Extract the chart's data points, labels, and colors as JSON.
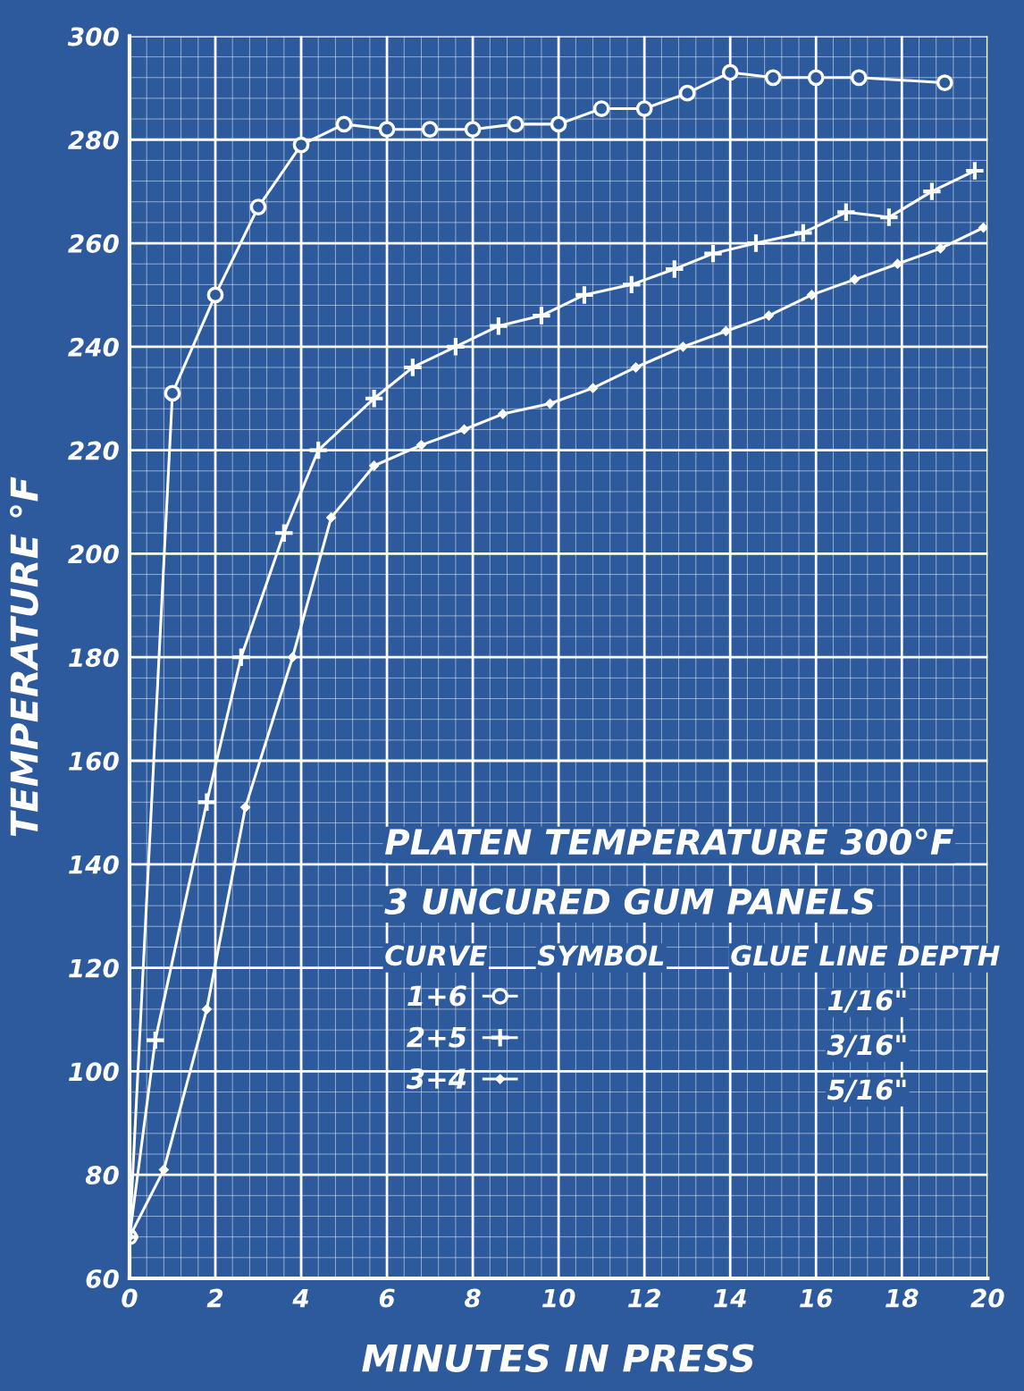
{
  "chart_data": {
    "type": "line",
    "xlabel": "MINUTES IN PRESS",
    "ylabel": "TEMPERATURE °F",
    "xlim": [
      0,
      20
    ],
    "ylim": [
      60,
      300
    ],
    "xticks": [
      0,
      2,
      4,
      6,
      8,
      10,
      12,
      14,
      16,
      18,
      20
    ],
    "yticks": [
      60,
      80,
      100,
      120,
      140,
      160,
      180,
      200,
      220,
      240,
      260,
      280,
      300
    ],
    "grid": true,
    "legend": "bottom",
    "series": [
      {
        "name": "1+6",
        "color": "#ffffff",
        "marker": "circle",
        "x": [
          0,
          1,
          2,
          3,
          4,
          5,
          6,
          7,
          8,
          9,
          10,
          11,
          12,
          13,
          14,
          15,
          16,
          17,
          19
        ],
        "values": [
          68,
          231,
          250,
          267,
          279,
          283,
          282,
          282,
          282,
          283,
          283,
          286,
          286,
          289,
          293,
          292,
          292,
          292,
          291
        ]
      },
      {
        "name": "2+5",
        "color": "#ffffff",
        "marker": "cross",
        "x": [
          0,
          0.6,
          1.8,
          2.6,
          3.6,
          4.4,
          5.7,
          6.6,
          7.6,
          8.6,
          9.6,
          10.6,
          11.7,
          12.7,
          13.6,
          14.6,
          15.7,
          16.7,
          17.7,
          18.7,
          19.7
        ],
        "values": [
          68,
          106,
          152,
          180,
          204,
          220,
          230,
          236,
          240,
          244,
          246,
          250,
          252,
          255,
          258,
          260,
          262,
          266,
          265,
          270,
          274
        ]
      },
      {
        "name": "3+4",
        "color": "#ffffff",
        "marker": "diamond",
        "x": [
          0,
          0.8,
          1.8,
          2.7,
          3.8,
          4.7,
          5.7,
          6.8,
          7.8,
          8.7,
          9.8,
          10.8,
          11.8,
          12.9,
          13.9,
          14.9,
          15.9,
          16.9,
          17.9,
          18.9,
          19.9
        ],
        "values": [
          68,
          81,
          112,
          151,
          180,
          207,
          217,
          221,
          224,
          227,
          229,
          232,
          236,
          240,
          243,
          246,
          250,
          253,
          256,
          259,
          263
        ]
      }
    ],
    "annotations": [
      "PLATEN TEMPERATURE 300°F",
      "3 UNCURED GUM PANELS",
      "CURVE",
      "SYMBOL",
      "GLUE LINE DEPTH",
      "1/16\"",
      "3/16\"",
      "5/16\""
    ]
  }
}
